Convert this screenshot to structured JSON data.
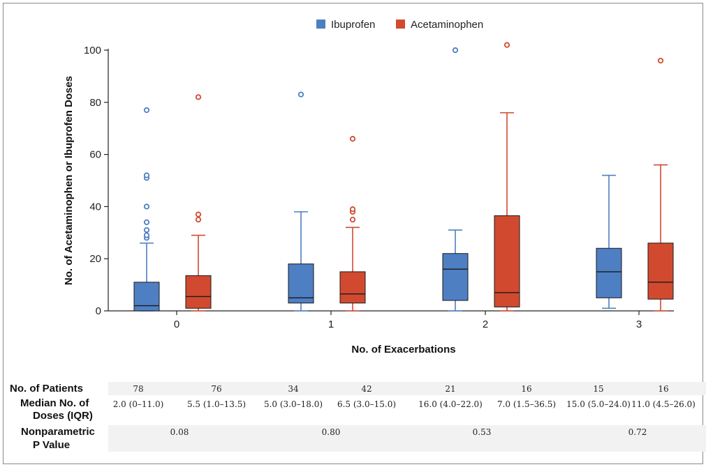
{
  "chart_data": {
    "type": "boxplot",
    "title": "",
    "xlabel": "No. of Exacerbations",
    "ylabel": "No. of Acetaminophen or Ibuprofen Doses",
    "categories": [
      "0",
      "1",
      "2",
      "3"
    ],
    "ylim": [
      0,
      100
    ],
    "yticks": [
      "0",
      "20",
      "40",
      "60",
      "80",
      "100"
    ],
    "legend_position": "top-center",
    "series": [
      {
        "name": "Ibuprofen",
        "color": "#4e7fc2",
        "boxes": [
          {
            "min": 0,
            "q1": 0,
            "median": 2,
            "q3": 11,
            "max": 26,
            "outliers": [
              28,
              29,
              31,
              34,
              40,
              51,
              52,
              77
            ]
          },
          {
            "min": 0,
            "q1": 3,
            "median": 5,
            "q3": 18,
            "max": 38,
            "outliers": [
              83
            ]
          },
          {
            "min": 0,
            "q1": 4,
            "median": 16,
            "q3": 22,
            "max": 31,
            "outliers": [
              100
            ]
          },
          {
            "min": 1,
            "q1": 5,
            "median": 15,
            "q3": 24,
            "max": 52,
            "outliers": []
          }
        ]
      },
      {
        "name": "Acetaminophen",
        "color": "#d14a30",
        "boxes": [
          {
            "min": 0,
            "q1": 1,
            "median": 5.5,
            "q3": 13.5,
            "max": 29,
            "outliers": [
              35,
              37,
              82
            ]
          },
          {
            "min": 0,
            "q1": 3,
            "median": 6.5,
            "q3": 15,
            "max": 32,
            "outliers": [
              35,
              38,
              39,
              66
            ]
          },
          {
            "min": 0,
            "q1": 1.5,
            "median": 7,
            "q3": 36.5,
            "max": 76,
            "outliers": [
              102
            ]
          },
          {
            "min": 0,
            "q1": 4.5,
            "median": 11,
            "q3": 26,
            "max": 56,
            "outliers": [
              96
            ]
          }
        ]
      }
    ]
  },
  "table": {
    "row1_label": "No. of Patients",
    "row2_label_line1": "Median No. of",
    "row2_label_line2": "Doses (IQR)",
    "row3_label_line1": "Nonparametric",
    "row3_label_line2": "P Value",
    "patients": [
      "78",
      "76",
      "34",
      "42",
      "21",
      "16",
      "15",
      "16"
    ],
    "medians": [
      "2.0 (0–11.0)",
      "5.5 (1.0–13.5)",
      "5.0 (3.0–18.0)",
      "6.5 (3.0–15.0)",
      "16.0 (4.0–22.0)",
      "7.0 (1.5–36.5)",
      "15.0 (5.0–24.0)",
      "11.0 (4.5–26.0)"
    ],
    "pvalues": [
      "0.08",
      "0.80",
      "0.53",
      "0.72"
    ]
  }
}
